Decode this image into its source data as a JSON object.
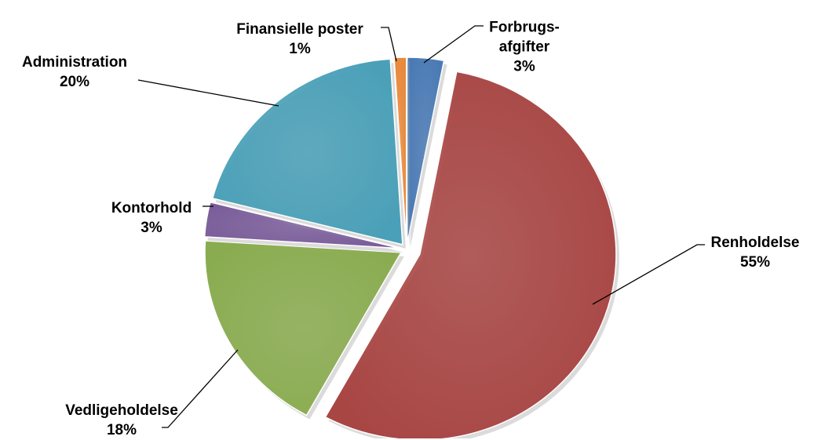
{
  "chart_data": {
    "type": "pie",
    "categories": [
      "Forbrugs-\nafgifter",
      "Renholdelse",
      "Vedligeholdelse",
      "Kontorhold",
      "Administration",
      "Finansielle poster"
    ],
    "values": [
      3,
      55,
      18,
      3,
      20,
      1
    ],
    "value_labels": [
      "3%",
      "55%",
      "18%",
      "3%",
      "20%",
      "1%"
    ],
    "colors": [
      "#4a7ab5",
      "#a84644",
      "#8aac50",
      "#7a5d9a",
      "#4aa0b8",
      "#e8883a"
    ]
  }
}
